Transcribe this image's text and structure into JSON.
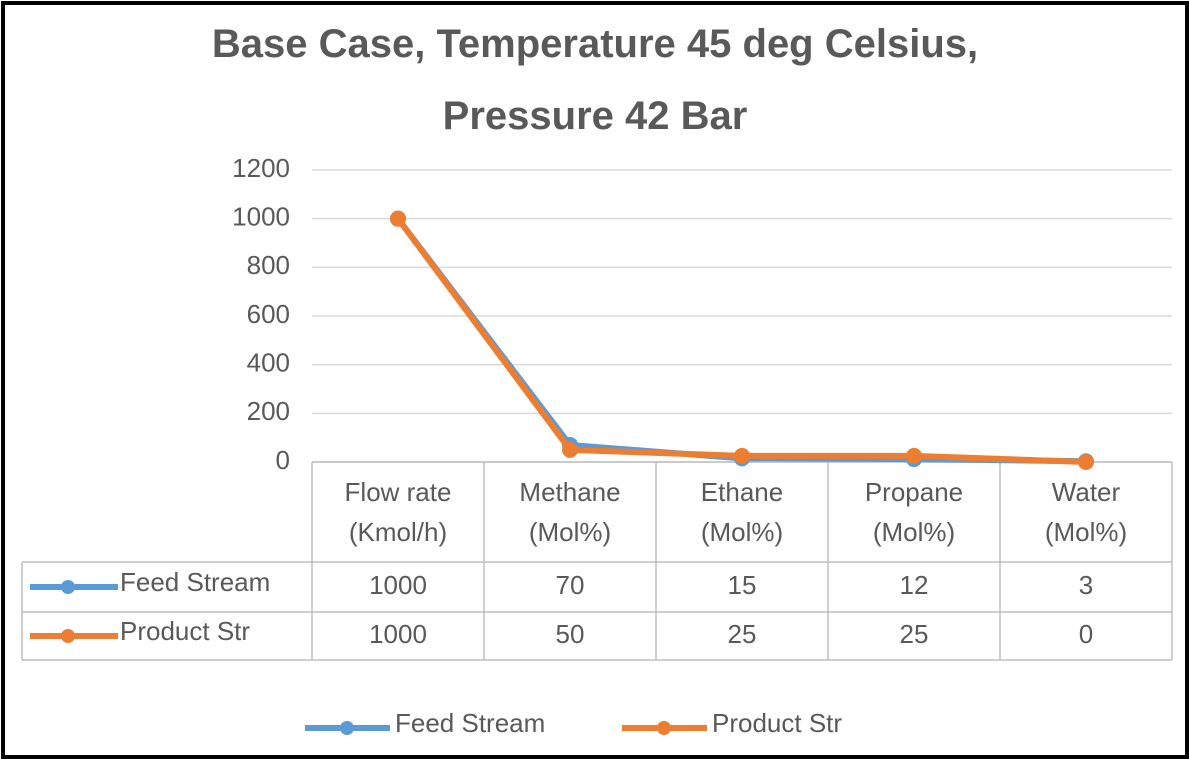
{
  "chart_data": {
    "type": "line",
    "title": "Base Case, Temperature 45 deg Celsius, Pressure 42 Bar",
    "categories": [
      "Flow rate (Kmol/h)",
      "Methane (Mol%)",
      "Ethane (Mol%)",
      "Propane (Mol%)",
      "Water (Mol%)"
    ],
    "series": [
      {
        "name": "Feed Stream",
        "color": "#5b9bd5",
        "values": [
          1000,
          70,
          15,
          12,
          3
        ]
      },
      {
        "name": "Product Str",
        "color": "#ed7d31",
        "values": [
          1000,
          50,
          25,
          25,
          0
        ]
      }
    ],
    "ylim": [
      0,
      1200
    ],
    "yticks": [
      0,
      200,
      400,
      600,
      800,
      1000,
      1200
    ],
    "grid": true,
    "legend": "bottom",
    "data_table": true
  }
}
